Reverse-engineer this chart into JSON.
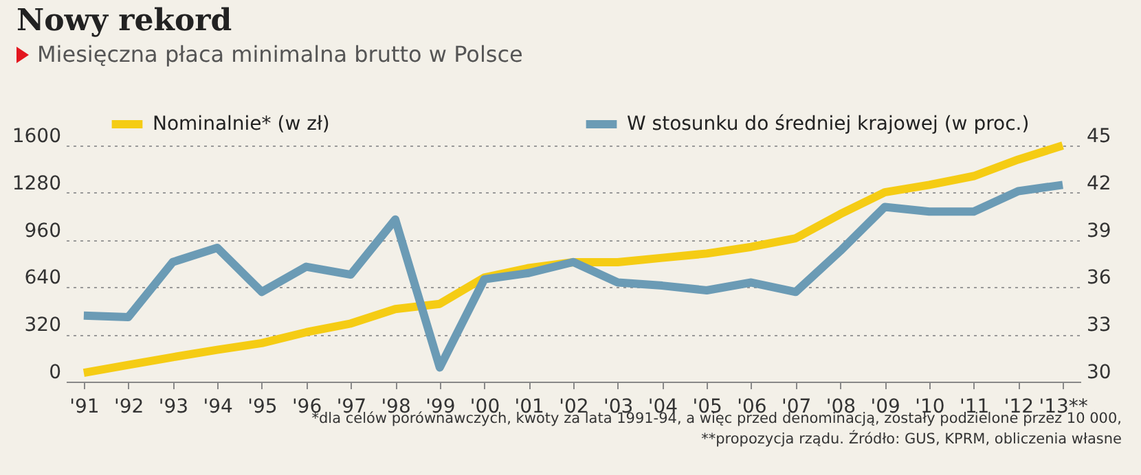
{
  "chart_data": {
    "type": "line",
    "title": "Nowy rekord",
    "subtitle": "Miesięczna płaca minimalna brutto w Polsce",
    "categories": [
      "'91",
      "'92",
      "'93",
      "'94",
      "'95",
      "'96",
      "'97",
      "'98",
      "'99",
      "'00",
      "'01",
      "'02",
      "'03",
      "'04",
      "'05",
      "'06",
      "'07",
      "'08",
      "'09",
      "'10",
      "'11",
      "'12",
      "'13**"
    ],
    "series": [
      {
        "name": "Nominalnie* (w zł)",
        "color": "#f5cc14",
        "values": [
          60,
          113,
          166,
          216,
          261,
          335,
          394,
          492,
          527,
          705,
          770,
          809,
          809,
          839,
          868,
          913,
          972,
          1135,
          1283,
          1333,
          1393,
          1505,
          1600
        ]
      },
      {
        "name": "W stosunku do średniej krajowej (w proc.)",
        "color": "#6b9bb5",
        "axis": "y2",
        "values": [
          34.2,
          34.1,
          37.6,
          38.5,
          35.7,
          37.3,
          36.8,
          40.3,
          30.9,
          36.5,
          36.9,
          37.6,
          36.3,
          36.1,
          35.8,
          36.3,
          35.7,
          38.3,
          41.1,
          40.8,
          40.8,
          42.1,
          42.5
        ]
      }
    ],
    "ylim": [
      0,
      1600
    ],
    "yticks": [
      0,
      320,
      640,
      960,
      1280,
      1600
    ],
    "y2lim": [
      30,
      45
    ],
    "y2ticks": [
      30,
      33,
      36,
      39,
      42,
      45
    ],
    "grid": "y",
    "legend": "top",
    "annotations": [
      "*dla celów porównawczych, kwoty za lata 1991-94, a więc przed denominacją, zostały podzielone przez 10 000,",
      "**propozycja rządu. Źródło: GUS, KPRM, obliczenia własne"
    ]
  }
}
